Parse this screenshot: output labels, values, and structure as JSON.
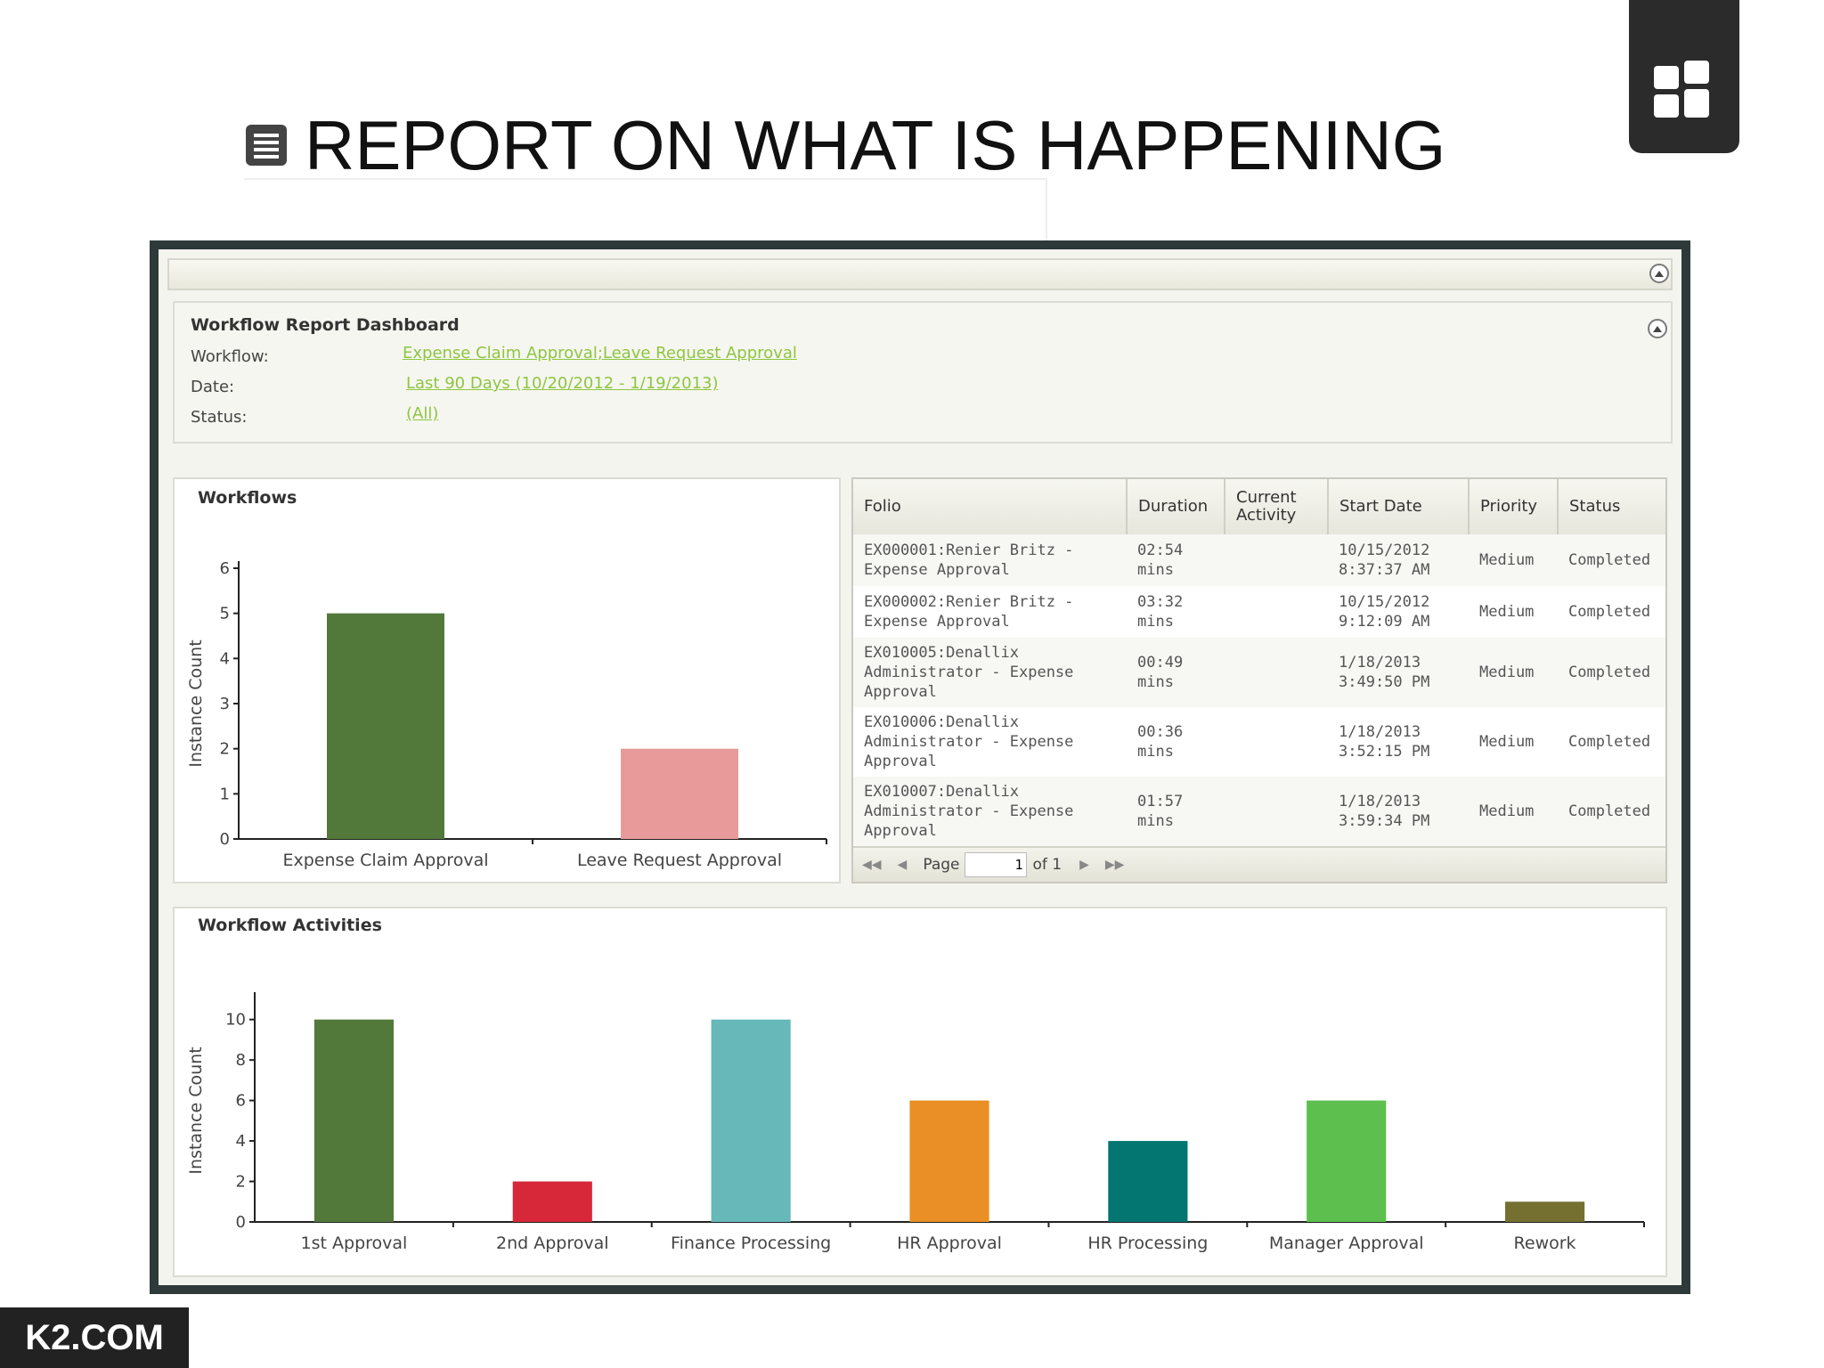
{
  "slide": {
    "title": "REPORT ON WHAT IS HAPPENING",
    "footer": "K2.COM",
    "icons": [
      "document-icon",
      "dashboard-grid-icon"
    ]
  },
  "dashboard": {
    "title": "Workflow Report Dashboard",
    "filters": [
      {
        "label": "Workflow:",
        "value": "Expense Claim Approval;Leave Request Approval"
      },
      {
        "label": "Date:",
        "value": "Last 90 Days (10/20/2012 - 1/19/2013)"
      },
      {
        "label": "Status:",
        "value": "(All)"
      }
    ]
  },
  "workflows_panel": {
    "title": "Workflows"
  },
  "activities_panel": {
    "title": "Workflow Activities"
  },
  "table": {
    "columns": [
      "Folio",
      "Duration",
      "Current Activity",
      "Start Date",
      "Priority",
      "Status"
    ],
    "rows": [
      {
        "folio": "EX000001:Renier Britz - Expense Approval",
        "duration": "02:54 mins",
        "activity": "",
        "start": "10/15/2012 8:37:37 AM",
        "priority": "Medium",
        "status": "Completed"
      },
      {
        "folio": "EX000002:Renier Britz - Expense Approval",
        "duration": "03:32 mins",
        "activity": "",
        "start": "10/15/2012 9:12:09 AM",
        "priority": "Medium",
        "status": "Completed"
      },
      {
        "folio": "EX010005:Denallix Administrator - Expense Approval",
        "duration": "00:49 mins",
        "activity": "",
        "start": "1/18/2013 3:49:50 PM",
        "priority": "Medium",
        "status": "Completed"
      },
      {
        "folio": "EX010006:Denallix Administrator - Expense Approval",
        "duration": "00:36 mins",
        "activity": "",
        "start": "1/18/2013 3:52:15 PM",
        "priority": "Medium",
        "status": "Completed"
      },
      {
        "folio": "EX010007:Denallix Administrator - Expense Approval",
        "duration": "01:57 mins",
        "activity": "",
        "start": "1/18/2013 3:59:34 PM",
        "priority": "Medium",
        "status": "Completed"
      }
    ],
    "pager": {
      "page_label": "Page",
      "page_value": "1",
      "of_label": "of 1"
    }
  },
  "chart_data": [
    {
      "type": "bar",
      "title": "Workflows",
      "categories": [
        "Expense Claim Approval",
        "Leave Request Approval"
      ],
      "values": [
        5,
        2
      ],
      "colors": [
        "#53793a",
        "#e89a9a"
      ],
      "ylabel": "Instance Count",
      "ylim": [
        0,
        6
      ],
      "yticks": [
        0,
        1,
        2,
        3,
        4,
        5,
        6
      ],
      "grid": false
    },
    {
      "type": "bar",
      "title": "Workflow Activities",
      "categories": [
        "1st Approval",
        "2nd Approval",
        "Finance Processing",
        "HR Approval",
        "HR Processing",
        "Manager Approval",
        "Rework"
      ],
      "values": [
        10,
        2,
        10,
        6,
        4,
        6,
        1
      ],
      "colors": [
        "#53793a",
        "#d62839",
        "#67b8b9",
        "#e98f25",
        "#037671",
        "#5cbf4e",
        "#757030"
      ],
      "ylabel": "Instance Count",
      "ylim": [
        0,
        11
      ],
      "yticks": [
        0,
        2,
        4,
        6,
        8,
        10
      ],
      "grid": false
    }
  ]
}
